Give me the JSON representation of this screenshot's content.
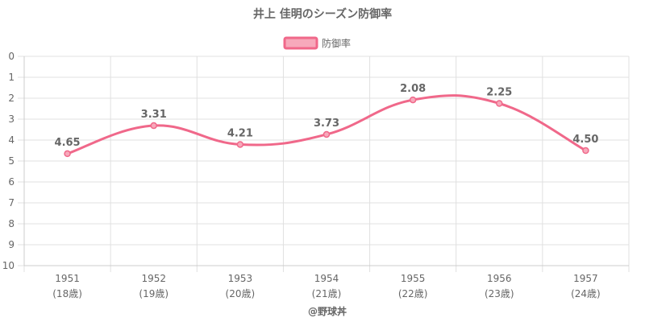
{
  "chart_data": {
    "type": "line",
    "title": "井上 佳明のシーズン防御率",
    "categories": [
      "1951",
      "1952",
      "1953",
      "1954",
      "1955",
      "1956",
      "1957"
    ],
    "sub_categories": [
      "(18歳)",
      "(19歳)",
      "(20歳)",
      "(21歳)",
      "(22歳)",
      "(23歳)",
      "(24歳)"
    ],
    "series": [
      {
        "name": "防御率",
        "values": [
          4.65,
          3.31,
          4.21,
          3.73,
          2.08,
          2.25,
          4.5
        ],
        "labels": [
          "4.65",
          "3.31",
          "4.21",
          "3.73",
          "2.08",
          "2.25",
          "4.50"
        ]
      }
    ],
    "yticks": [
      "0",
      "1",
      "2",
      "3",
      "4",
      "5",
      "6",
      "7",
      "8",
      "9",
      "10"
    ],
    "ylim": [
      0,
      10
    ],
    "y_reversed": true,
    "grid": true,
    "legend_position": "top-center",
    "credit": "@野球丼",
    "colors": {
      "line": "#f0688a",
      "legend_fill": "#f7a9bb",
      "grid": "#e0e0e0",
      "axis": "#cccccc",
      "text": "#666666"
    }
  }
}
